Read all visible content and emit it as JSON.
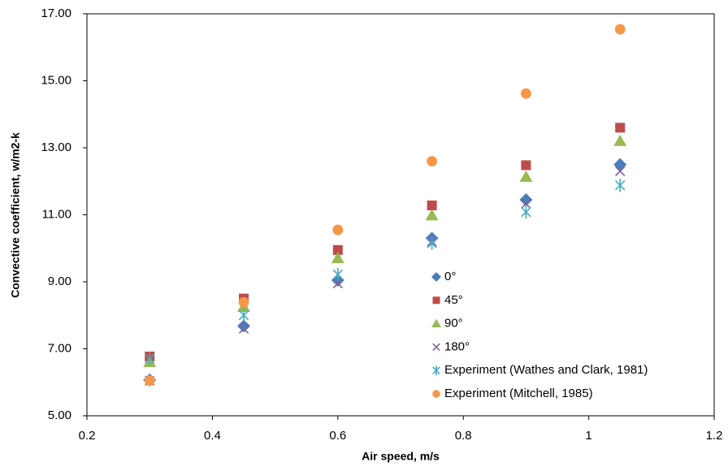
{
  "chart_data": {
    "type": "scatter",
    "x_label": "Air speed, m/s",
    "y_label": "Convective coefficient, w/m2-k",
    "x": [
      0.3,
      0.45,
      0.6,
      0.75,
      0.9,
      1.05
    ],
    "series": [
      {
        "name": "0°",
        "color": "#4a7ebb",
        "marker": "diamond",
        "values": [
          6.07,
          7.68,
          9.05,
          10.3,
          11.45,
          12.5
        ]
      },
      {
        "name": "45°",
        "color": "#be4b48",
        "marker": "square",
        "values": [
          6.77,
          8.5,
          9.95,
          11.28,
          12.48,
          13.6
        ]
      },
      {
        "name": "90°",
        "color": "#98b954",
        "marker": "triangle",
        "values": [
          6.6,
          8.25,
          9.7,
          10.98,
          12.13,
          13.2
        ]
      },
      {
        "name": "180°",
        "color": "#7d60a0",
        "marker": "x",
        "values": [
          6.05,
          7.6,
          8.95,
          10.2,
          11.33,
          12.3
        ]
      },
      {
        "name": "Experiment (Wathes and Clark, 1981)",
        "color": "#46aac5",
        "marker": "star",
        "values": [
          6.7,
          8.0,
          9.22,
          10.15,
          11.08,
          11.88
        ]
      },
      {
        "name": "Experiment (Mitchell, 1985)",
        "color": "#f79646",
        "marker": "circle",
        "values": [
          6.05,
          8.39,
          10.55,
          12.6,
          14.62,
          16.54
        ]
      }
    ],
    "xlim": [
      0.2,
      1.2
    ],
    "xticks": [
      0.2,
      0.4,
      0.6,
      0.8,
      1,
      1.2
    ],
    "ylim": [
      5,
      17
    ],
    "yticks": [
      {
        "value": 5,
        "label": "5.00"
      },
      {
        "value": 7,
        "label": "7.00"
      },
      {
        "value": 9,
        "label": "9.00"
      },
      {
        "value": 11,
        "label": "11.00"
      },
      {
        "value": 13,
        "label": "13.00"
      },
      {
        "value": 15,
        "label": "15.00"
      },
      {
        "value": 17,
        "label": "17.00"
      }
    ],
    "grid": false,
    "legend": "inside-center"
  }
}
